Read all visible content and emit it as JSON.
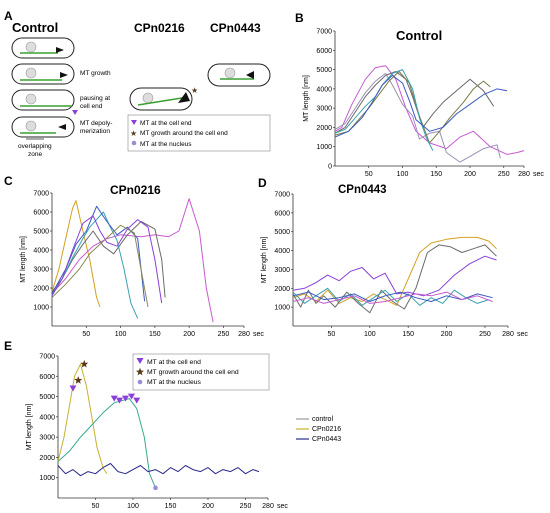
{
  "panelA": {
    "letter": "A",
    "col_control": "Control",
    "col_cpn0216": "CPn0216",
    "col_cpn0443": "CPn0443",
    "row_labels": [
      "MT growth",
      "pausing at",
      "cell end",
      "MT depoly-",
      "merization"
    ],
    "overlap_label": [
      "overlapping",
      "zone"
    ],
    "legend": [
      {
        "marker": "triangle",
        "color": "#8b3fd9",
        "text": "MT at the cell end"
      },
      {
        "marker": "star",
        "color": "#5a3a1a",
        "text": "MT growth around the cell end"
      },
      {
        "marker": "dot",
        "color": "#9a8ad8",
        "text": "MT at the nucleus"
      }
    ]
  },
  "chart_data": [
    {
      "type": "line",
      "panel": "B",
      "title": "Control",
      "xlabel": "sec",
      "ylabel": "MT length [nm]",
      "xlim": [
        0,
        280
      ],
      "ylim": [
        0,
        7000
      ],
      "xticks": [
        50,
        100,
        150,
        200,
        250,
        280
      ],
      "yticks": [
        0,
        1000,
        2000,
        3000,
        4000,
        5000,
        6000,
        7000
      ],
      "series": [
        {
          "color": "#c65ad0",
          "x": [
            0,
            10,
            25,
            45,
            60,
            75,
            90,
            105,
            120,
            140,
            165,
            185,
            205,
            230,
            255,
            270,
            280
          ],
          "y": [
            1800,
            2000,
            3200,
            4500,
            5100,
            5200,
            4500,
            3000,
            1800,
            1200,
            900,
            1500,
            1800,
            1000,
            600,
            700,
            800
          ]
        },
        {
          "color": "#9b8fb3",
          "x": [
            0,
            15,
            30,
            45,
            60,
            75,
            85,
            100,
            115,
            125,
            140,
            155,
            165,
            185,
            200,
            220,
            240,
            245
          ],
          "y": [
            1900,
            2200,
            3000,
            3800,
            4400,
            4800,
            4200,
            3200,
            2600,
            1400,
            1700,
            1800,
            700,
            200,
            500,
            900,
            1100,
            400
          ]
        },
        {
          "color": "#6a6a6a",
          "x": [
            0,
            15,
            30,
            45,
            60,
            75,
            90,
            105,
            115,
            130,
            145,
            160,
            180,
            200,
            220,
            235
          ],
          "y": [
            1700,
            2000,
            2800,
            3600,
            4200,
            4700,
            4900,
            4500,
            3600,
            2000,
            2700,
            3300,
            3900,
            4500,
            3900,
            3100
          ]
        },
        {
          "color": "#7a7a48",
          "x": [
            0,
            20,
            35,
            50,
            65,
            80,
            95,
            110,
            125,
            140,
            155,
            170,
            190,
            205,
            220,
            230
          ],
          "y": [
            1600,
            1800,
            2400,
            3000,
            3700,
            4400,
            4900,
            4300,
            2600,
            1200,
            1800,
            2500,
            3300,
            4000,
            4400,
            4100
          ]
        },
        {
          "color": "#3aa0b0",
          "x": [
            0,
            15,
            30,
            45,
            60,
            70,
            85,
            100,
            115,
            125,
            135,
            145
          ],
          "y": [
            1700,
            1900,
            2500,
            3100,
            3600,
            4200,
            4800,
            5000,
            4000,
            2500,
            1500,
            800
          ]
        },
        {
          "color": "#3a5ac0",
          "x": [
            0,
            20,
            40,
            55,
            70,
            85,
            100,
            110,
            120,
            140,
            160,
            180,
            200,
            220,
            240,
            255
          ],
          "y": [
            1500,
            1800,
            2500,
            3300,
            4200,
            4700,
            4300,
            3400,
            2400,
            1800,
            2000,
            2700,
            3200,
            3700,
            4000,
            3900
          ]
        }
      ]
    },
    {
      "type": "line",
      "panel": "C",
      "title": "CPn0216",
      "xlabel": "sec",
      "ylabel": "MT length [nm]",
      "xlim": [
        0,
        280
      ],
      "ylim": [
        0,
        7000
      ],
      "xticks": [
        50,
        100,
        150,
        200,
        250,
        280
      ],
      "yticks": [
        1000,
        2000,
        3000,
        4000,
        5000,
        6000,
        7000
      ],
      "series": [
        {
          "color": "#d4a020",
          "x": [
            0,
            10,
            20,
            30,
            35,
            45,
            55,
            65,
            70
          ],
          "y": [
            1800,
            3000,
            4600,
            6200,
            6600,
            5000,
            3500,
            1500,
            1000
          ]
        },
        {
          "color": "#c65ad0",
          "x": [
            0,
            20,
            40,
            60,
            80,
            100,
            130,
            150,
            170,
            185,
            200,
            215,
            225,
            235
          ],
          "y": [
            1700,
            2500,
            3500,
            4200,
            4600,
            4800,
            4700,
            4800,
            4700,
            5000,
            6700,
            5000,
            2000,
            200
          ]
        },
        {
          "color": "#6a6a6a",
          "x": [
            0,
            15,
            30,
            45,
            60,
            75,
            90,
            110,
            130,
            150,
            160,
            165
          ],
          "y": [
            1800,
            2500,
            3500,
            4300,
            5000,
            4200,
            3800,
            4800,
            5500,
            5100,
            3500,
            1500
          ]
        },
        {
          "color": "#3aa0b0",
          "x": [
            0,
            15,
            30,
            45,
            55,
            65,
            75,
            85,
            95,
            105,
            115,
            125
          ],
          "y": [
            1600,
            2500,
            3600,
            4600,
            5200,
            5600,
            6000,
            5200,
            4500,
            3000,
            1200,
            400
          ]
        },
        {
          "color": "#3a5ac0",
          "x": [
            0,
            20,
            35,
            50,
            65,
            80,
            95,
            110,
            125,
            135
          ],
          "y": [
            1700,
            3000,
            4300,
            5000,
            6300,
            5500,
            4800,
            5200,
            4600,
            1300
          ]
        },
        {
          "color": "#8b3fd9",
          "x": [
            0,
            15,
            30,
            45,
            60,
            70,
            80,
            95,
            110,
            125,
            140,
            150,
            160
          ],
          "y": [
            1600,
            2500,
            4000,
            5400,
            5800,
            5000,
            4400,
            4200,
            5100,
            5600,
            5200,
            3500,
            1200
          ]
        },
        {
          "color": "#8a8a5a",
          "x": [
            0,
            20,
            40,
            55,
            70,
            85,
            100,
            120,
            140
          ],
          "y": [
            1500,
            2200,
            3000,
            3800,
            4300,
            4800,
            5300,
            4900,
            1000
          ]
        }
      ]
    },
    {
      "type": "line",
      "panel": "D",
      "title": "CPn0443",
      "xlabel": "sec",
      "ylabel": "MT length [nm]",
      "xlim": [
        0,
        280
      ],
      "ylim": [
        0,
        7000
      ],
      "xticks": [
        50,
        100,
        150,
        200,
        250,
        280
      ],
      "yticks": [
        1000,
        2000,
        3000,
        4000,
        5000,
        6000,
        7000
      ],
      "series": [
        {
          "color": "#d4a020",
          "x": [
            0,
            15,
            30,
            45,
            60,
            75,
            90,
            105,
            120,
            135,
            150,
            165,
            180,
            200,
            220,
            240,
            255,
            265
          ],
          "y": [
            1500,
            1700,
            1300,
            1900,
            1200,
            1500,
            1300,
            1700,
            1400,
            1100,
            2500,
            3900,
            4400,
            4600,
            4700,
            4700,
            4500,
            4100
          ]
        },
        {
          "color": "#6a6a6a",
          "x": [
            0,
            10,
            20,
            30,
            40,
            55,
            70,
            85,
            100,
            115,
            130,
            145,
            160,
            175,
            190,
            205,
            220,
            235,
            250,
            265
          ],
          "y": [
            1700,
            1000,
            1900,
            1200,
            1600,
            1000,
            1800,
            1200,
            700,
            1900,
            1300,
            900,
            2000,
            3900,
            4300,
            4200,
            3900,
            4100,
            4300,
            3700
          ]
        },
        {
          "color": "#8b3fd9",
          "x": [
            0,
            15,
            30,
            45,
            60,
            75,
            90,
            105,
            120,
            135,
            150,
            170,
            190,
            210,
            230,
            250,
            265
          ],
          "y": [
            1900,
            2000,
            2300,
            2700,
            2400,
            2900,
            3100,
            2500,
            2800,
            1700,
            1800,
            1600,
            1900,
            2700,
            3300,
            3700,
            3500
          ]
        },
        {
          "color": "#3aa0b0",
          "x": [
            0,
            15,
            30,
            45,
            60,
            75,
            90,
            105,
            120,
            135,
            150,
            165,
            180,
            195,
            210,
            225,
            240,
            255
          ],
          "y": [
            1800,
            1200,
            1600,
            2000,
            1300,
            1700,
            1100,
            1500,
            1900,
            1300,
            1700,
            1100,
            1500,
            1200,
            1900,
            1500,
            1200,
            1400
          ]
        },
        {
          "color": "#3a5ac0",
          "x": [
            0,
            20,
            40,
            60,
            80,
            100,
            120,
            140,
            160,
            180,
            200,
            220,
            240,
            260
          ],
          "y": [
            1600,
            1800,
            1400,
            1500,
            1700,
            1300,
            1600,
            1800,
            1500,
            1300,
            1600,
            1400,
            1700,
            1500
          ]
        },
        {
          "color": "#c65ad0",
          "x": [
            0,
            20,
            40,
            60,
            80,
            100,
            120,
            140,
            160,
            180,
            200,
            220,
            240,
            260
          ],
          "y": [
            1300,
            1500,
            1200,
            1400,
            1600,
            1200,
            1300,
            1500,
            1700,
            1600,
            1800,
            1400,
            1600,
            1300
          ]
        }
      ]
    },
    {
      "type": "line",
      "panel": "E",
      "xlabel": "sec",
      "ylabel": "MT length [nm]",
      "xlim": [
        0,
        280
      ],
      "ylim": [
        0,
        7000
      ],
      "xticks": [
        50,
        100,
        150,
        200,
        250,
        280
      ],
      "yticks": [
        1000,
        2000,
        3000,
        4000,
        5000,
        6000,
        7000
      ],
      "legend_lines": [
        {
          "name": "control",
          "color": "#9a9a9a"
        },
        {
          "name": "CPn0216",
          "color": "#c8b030"
        },
        {
          "name": "CPn0443",
          "color": "#2a2a8a"
        }
      ],
      "marker_legend": [
        {
          "marker": "triangle",
          "color": "#8b3fd9",
          "text": "MT at the cell end"
        },
        {
          "marker": "star",
          "color": "#5a3a1a",
          "text": "MT growth around the cell end"
        },
        {
          "marker": "dot",
          "color": "#9a8ad8",
          "text": "MT at the nucleus"
        }
      ],
      "series": [
        {
          "name": "CPn0216",
          "color": "#c8b030",
          "x": [
            0,
            8,
            15,
            22,
            30,
            38,
            45,
            52,
            60,
            65
          ],
          "y": [
            1800,
            3000,
            4500,
            6000,
            6600,
            5500,
            4000,
            2500,
            1500,
            1200
          ]
        },
        {
          "name": "control",
          "color": "#3aa890",
          "x": [
            0,
            15,
            30,
            45,
            60,
            75,
            85,
            95,
            105,
            115,
            122,
            130
          ],
          "y": [
            1800,
            2300,
            3000,
            3600,
            4200,
            4700,
            4800,
            4900,
            4400,
            3000,
            1200,
            500
          ]
        },
        {
          "name": "CPn0443",
          "color": "#2a2a8a",
          "x": [
            0,
            10,
            20,
            30,
            40,
            50,
            60,
            70,
            80,
            90,
            100,
            110,
            120,
            130,
            140,
            150,
            160,
            170,
            180,
            190,
            200,
            210,
            220,
            230,
            240,
            250,
            260,
            268
          ],
          "y": [
            1600,
            1200,
            1400,
            1100,
            1300,
            1200,
            1500,
            1700,
            1300,
            1200,
            1400,
            1600,
            1300,
            1400,
            1200,
            1500,
            1300,
            1600,
            1400,
            1300,
            1500,
            1200,
            1400,
            1300,
            1500,
            1200,
            1400,
            1300
          ]
        }
      ],
      "markers": [
        {
          "marker": "triangle",
          "x": 20,
          "y": 5300
        },
        {
          "marker": "star",
          "x": 27,
          "y": 5800
        },
        {
          "marker": "star",
          "x": 35,
          "y": 6600
        },
        {
          "marker": "triangle",
          "x": 75,
          "y": 4800
        },
        {
          "marker": "triangle",
          "x": 82,
          "y": 4700
        },
        {
          "marker": "triangle",
          "x": 90,
          "y": 4800
        },
        {
          "marker": "triangle",
          "x": 98,
          "y": 4900
        },
        {
          "marker": "triangle",
          "x": 105,
          "y": 4700
        },
        {
          "marker": "dot",
          "x": 130,
          "y": 500
        }
      ]
    }
  ]
}
